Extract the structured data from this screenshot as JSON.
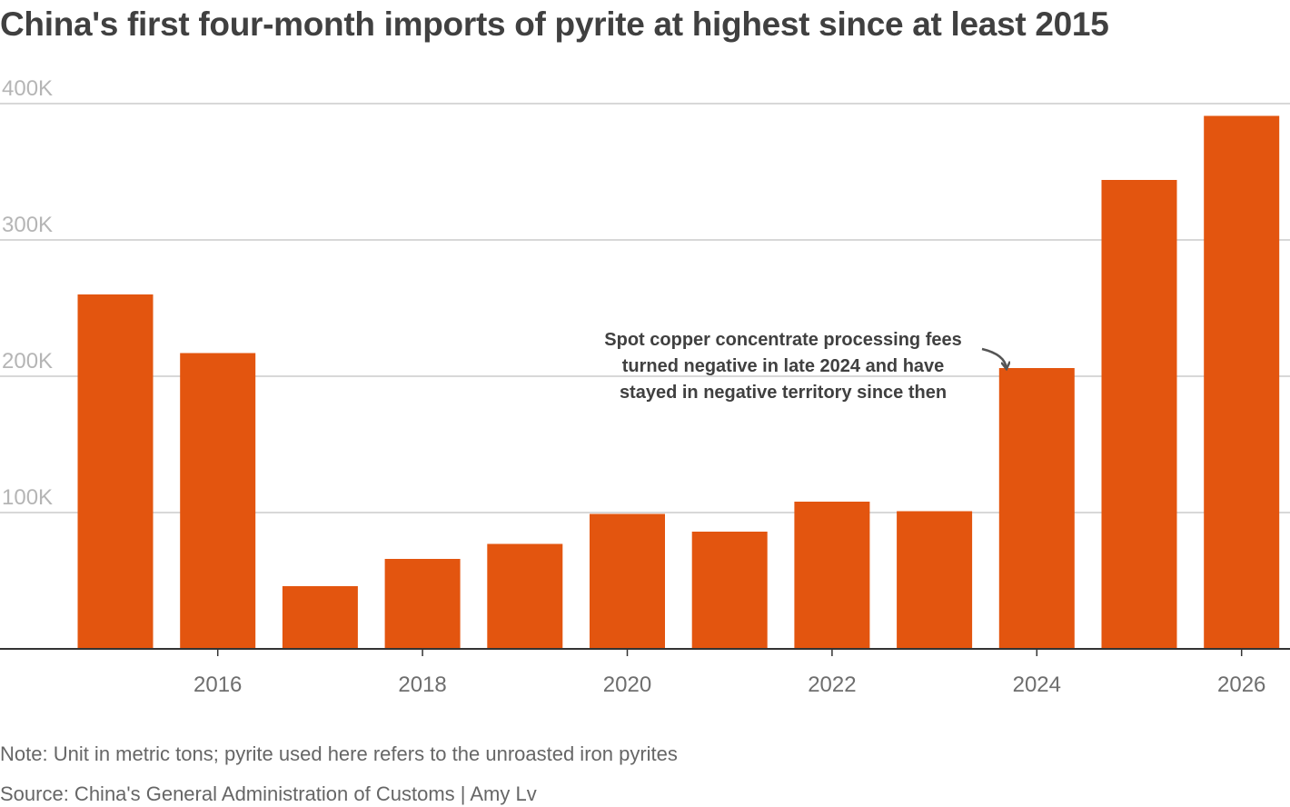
{
  "chart_data": {
    "type": "bar",
    "title": "China's first four-month imports of pyrite at highest since at least 2015",
    "categories": [
      2015,
      2016,
      2017,
      2018,
      2019,
      2020,
      2021,
      2022,
      2023,
      2024,
      2025,
      2026
    ],
    "values": [
      260000,
      217000,
      46000,
      66000,
      77000,
      99000,
      86000,
      108000,
      101000,
      206000,
      344000,
      391000
    ],
    "xlabel": "",
    "ylabel": "",
    "ylim": [
      0,
      400000
    ],
    "yticks": [
      {
        "value": 100000,
        "label": "100K"
      },
      {
        "value": 200000,
        "label": "200K"
      },
      {
        "value": 300000,
        "label": "300K"
      },
      {
        "value": 400000,
        "label": "400K"
      }
    ],
    "xticks": [
      {
        "value": 2016,
        "label": "2016"
      },
      {
        "value": 2018,
        "label": "2018"
      },
      {
        "value": 2020,
        "label": "2020"
      },
      {
        "value": 2022,
        "label": "2022"
      },
      {
        "value": 2024,
        "label": "2024"
      },
      {
        "value": 2026,
        "label": "2026"
      }
    ],
    "grid": true,
    "legend": "none",
    "bar_color": "#e3550f",
    "annotation": {
      "target": 2024,
      "lines": [
        "Spot copper concentrate processing fees",
        "turned negative in late 2024 and have",
        "stayed in negative territory since then"
      ]
    }
  },
  "note": "Note: Unit in metric tons; pyrite used here refers to the unroasted iron pyrites",
  "source": "Source: China's General Administration of Customs | Amy Lv"
}
